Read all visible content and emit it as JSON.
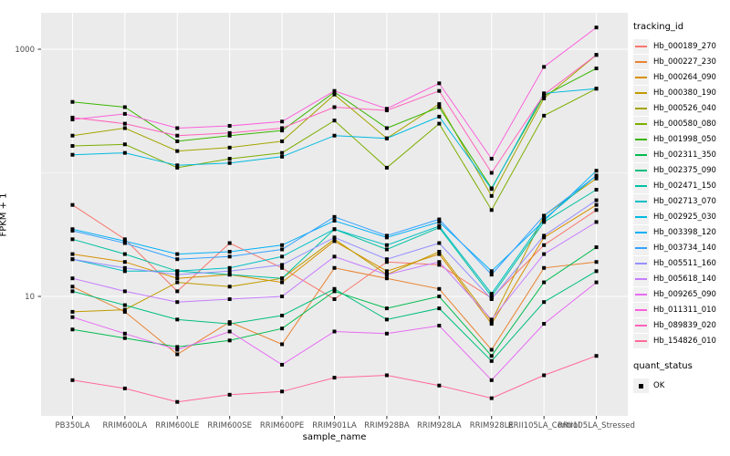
{
  "chart_data": {
    "type": "line",
    "title": "",
    "xlabel": "sample_name",
    "ylabel": "FPKM + 1",
    "y_scale": "log10",
    "y_ticks": [
      10,
      1000
    ],
    "y_tick_labels": [
      "10",
      "1000"
    ],
    "y_minor_gridlines": [
      100
    ],
    "ylim": [
      1.1,
      1975
    ],
    "grid": true,
    "legend_position": "right",
    "point_shape": "filled-square",
    "point_color": "#000000",
    "categories": [
      "PB350LA",
      "RRIM600LA",
      "RRIM600LE",
      "RRIM600SE",
      "RRIM600PE",
      "RRIM901LA",
      "RRIM928BA",
      "RRIM928LA",
      "RRIM928LE",
      "RRII105LA_Control",
      "RRII105LA_Stressed"
    ],
    "series": [
      {
        "name": "Hb_000189_270",
        "color": "#F8766D",
        "values": [
          55,
          29,
          11,
          27,
          17,
          9.5,
          19,
          18,
          9.7,
          26,
          50
        ]
      },
      {
        "name": "Hb_000227_230",
        "color": "#EA8331",
        "values": [
          12,
          7.5,
          3.4,
          6.2,
          4.1,
          17,
          14,
          11.5,
          3.7,
          17,
          19
        ]
      },
      {
        "name": "Hb_000264_090",
        "color": "#D89000",
        "values": [
          22,
          19,
          14,
          15,
          13,
          28,
          16,
          22,
          6,
          30,
          55
        ]
      },
      {
        "name": "Hb_000380_190",
        "color": "#C09B00",
        "values": [
          7.5,
          7.8,
          13,
          12,
          14,
          29,
          15,
          23,
          6.3,
          45,
          90
        ]
      },
      {
        "name": "Hb_000526_040",
        "color": "#A3A500",
        "values": [
          200,
          230,
          150,
          160,
          180,
          430,
          190,
          360,
          65,
          400,
          900
        ]
      },
      {
        "name": "Hb_000580_080",
        "color": "#7CAE00",
        "values": [
          165,
          170,
          110,
          130,
          145,
          265,
          110,
          250,
          50,
          290,
          480
        ]
      },
      {
        "name": "Hb_001998_050",
        "color": "#39B600",
        "values": [
          375,
          340,
          180,
          200,
          220,
          450,
          230,
          340,
          75,
          420,
          700
        ]
      },
      {
        "name": "Hb_002311_350",
        "color": "#00BB4E",
        "values": [
          5.4,
          4.6,
          3.9,
          4.4,
          5.5,
          11,
          8,
          10,
          3.3,
          13,
          25
        ]
      },
      {
        "name": "Hb_002375_090",
        "color": "#00BF7D",
        "values": [
          11,
          8.5,
          6.5,
          6,
          7,
          11.5,
          6.5,
          8,
          3,
          9,
          16
        ]
      },
      {
        "name": "Hb_002471_150",
        "color": "#00C1A3",
        "values": [
          29,
          22,
          16,
          15,
          14,
          35,
          24,
          36,
          10,
          40,
          73
        ]
      },
      {
        "name": "Hb_002713_070",
        "color": "#00BFC4",
        "values": [
          20,
          16,
          16,
          17,
          21,
          35,
          26,
          37,
          10.5,
          42,
          95
        ]
      },
      {
        "name": "Hb_002925_030",
        "color": "#00BAE0",
        "values": [
          140,
          145,
          115,
          120,
          135,
          200,
          190,
          285,
          74,
          440,
          480
        ]
      },
      {
        "name": "Hb_003398_120",
        "color": "#00B0F6",
        "values": [
          35,
          28,
          22,
          23,
          26,
          41,
          30,
          40,
          16,
          41,
          104
        ]
      },
      {
        "name": "Hb_003734_140",
        "color": "#35A2FF",
        "values": [
          34,
          27,
          20,
          21,
          24,
          44,
          31,
          42,
          15,
          45,
          95
        ]
      },
      {
        "name": "Hb_005511_160",
        "color": "#9590FF",
        "values": [
          20,
          17,
          15,
          16,
          18,
          30,
          20,
          27,
          9.5,
          31,
          60
        ]
      },
      {
        "name": "Hb_005618_140",
        "color": "#C77CFF",
        "values": [
          14,
          11,
          9,
          9.5,
          10,
          21,
          15,
          19,
          6.5,
          22,
          40
        ]
      },
      {
        "name": "Hb_009265_090",
        "color": "#E76BF3",
        "values": [
          6.8,
          5,
          3.7,
          5.2,
          2.8,
          5.2,
          5,
          5.8,
          2.1,
          6,
          13
        ]
      },
      {
        "name": "Hb_011311_010",
        "color": "#FA62DB",
        "values": [
          270,
          300,
          230,
          240,
          260,
          460,
          330,
          530,
          130,
          720,
          1500
        ]
      },
      {
        "name": "Hb_089839_020",
        "color": "#FF62BC",
        "values": [
          280,
          250,
          200,
          210,
          230,
          340,
          320,
          460,
          100,
          430,
          900
        ]
      },
      {
        "name": "Hb_154826_010",
        "color": "#FF6A98",
        "values": [
          2.1,
          1.8,
          1.4,
          1.6,
          1.7,
          2.2,
          2.3,
          1.9,
          1.5,
          2.3,
          3.3
        ]
      }
    ]
  },
  "legend": {
    "title": "tracking_id"
  },
  "legend2": {
    "title": "quant_status",
    "items": [
      {
        "label": "OK"
      }
    ]
  },
  "colors": {
    "panel_bg": "#EBEBEB",
    "grid": "#FFFFFF",
    "tick_label": "#4D4D4D",
    "tick_mark": "#333333",
    "legend_key_bg": "#F0F0F0"
  }
}
